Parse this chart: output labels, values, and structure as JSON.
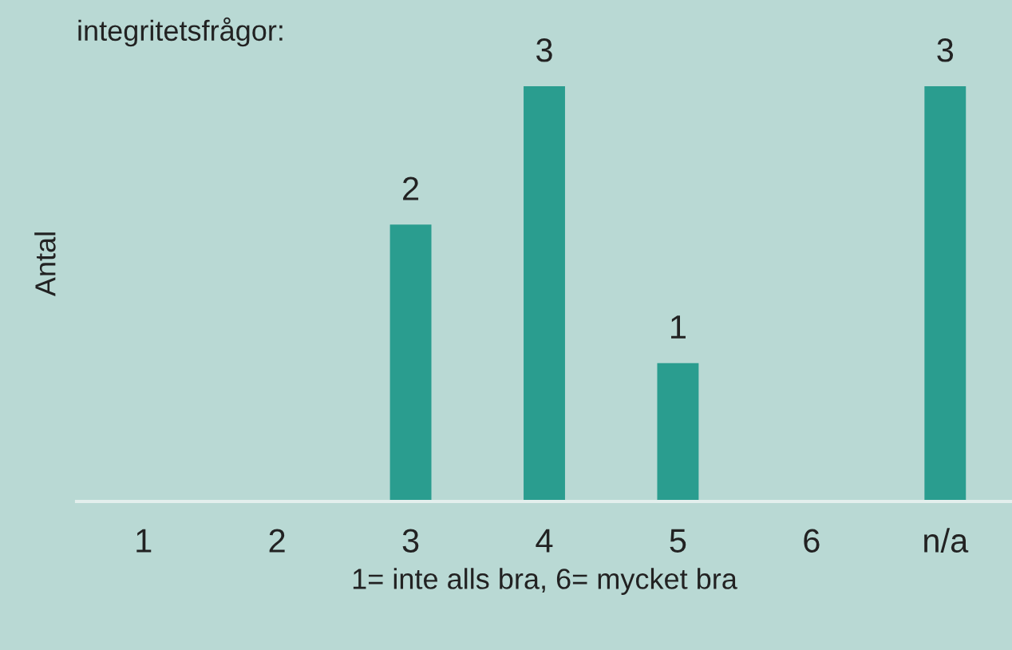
{
  "chart_data": {
    "type": "bar",
    "title": "integritetsfrågor:",
    "xlabel": "1= inte alls bra, 6= mycket bra",
    "ylabel": "Antal",
    "categories": [
      "1",
      "2",
      "3",
      "4",
      "5",
      "6",
      "n/a"
    ],
    "values": [
      0,
      0,
      2,
      3,
      1,
      0,
      3
    ],
    "value_labels": [
      null,
      null,
      "2",
      "3",
      "1",
      null,
      "3"
    ],
    "color": "#2a9d8f",
    "grid": false,
    "legend": false
  }
}
